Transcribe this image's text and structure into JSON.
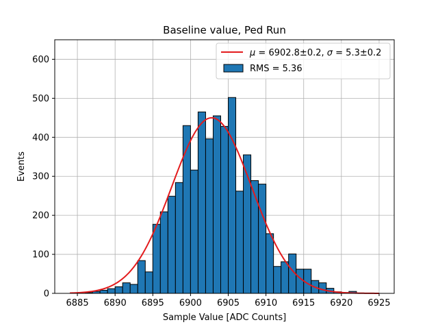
{
  "chart_data": {
    "type": "bar",
    "title": "Baseline value, Ped Run",
    "xlabel": "Sample Value [ADC Counts]",
    "ylabel": "Events",
    "xlim": [
      6882,
      6927
    ],
    "ylim": [
      0,
      650
    ],
    "xticks": [
      6885,
      6890,
      6895,
      6900,
      6905,
      6910,
      6915,
      6920,
      6925
    ],
    "yticks": [
      0,
      100,
      200,
      300,
      400,
      500,
      600
    ],
    "grid": true,
    "legend_position": "top-right",
    "bin_width": 1,
    "bins": [
      {
        "left": 6886,
        "count": 2
      },
      {
        "left": 6887,
        "count": 5
      },
      {
        "left": 6888,
        "count": 8
      },
      {
        "left": 6889,
        "count": 12
      },
      {
        "left": 6890,
        "count": 17
      },
      {
        "left": 6891,
        "count": 27
      },
      {
        "left": 6892,
        "count": 23
      },
      {
        "left": 6893,
        "count": 84
      },
      {
        "left": 6894,
        "count": 55
      },
      {
        "left": 6895,
        "count": 177
      },
      {
        "left": 6896,
        "count": 209
      },
      {
        "left": 6897,
        "count": 249
      },
      {
        "left": 6898,
        "count": 284
      },
      {
        "left": 6899,
        "count": 430
      },
      {
        "left": 6900,
        "count": 316
      },
      {
        "left": 6901,
        "count": 465
      },
      {
        "left": 6902,
        "count": 396
      },
      {
        "left": 6903,
        "count": 455
      },
      {
        "left": 6904,
        "count": 428
      },
      {
        "left": 6905,
        "count": 502
      },
      {
        "left": 6906,
        "count": 262
      },
      {
        "left": 6907,
        "count": 355
      },
      {
        "left": 6908,
        "count": 289
      },
      {
        "left": 6909,
        "count": 280
      },
      {
        "left": 6910,
        "count": 153
      },
      {
        "left": 6911,
        "count": 69
      },
      {
        "left": 6912,
        "count": 81
      },
      {
        "left": 6913,
        "count": 101
      },
      {
        "left": 6914,
        "count": 62
      },
      {
        "left": 6915,
        "count": 62
      },
      {
        "left": 6916,
        "count": 33
      },
      {
        "left": 6917,
        "count": 27
      },
      {
        "left": 6918,
        "count": 13
      },
      {
        "left": 6919,
        "count": 4
      },
      {
        "left": 6920,
        "count": 2
      },
      {
        "left": 6921,
        "count": 5
      },
      {
        "left": 6922,
        "count": 1
      }
    ],
    "fit": {
      "mu": 6902.8,
      "sigma": 5.3,
      "amplitude": 450,
      "x_range": [
        6884,
        6925
      ]
    },
    "series": [
      {
        "label": "$\\mu = 6902.8{\\pm}0.2$, $\\sigma = 5.3{\\pm}0.2$",
        "type": "line",
        "color": "#e31a1c"
      },
      {
        "label": "RMS = 5.36",
        "type": "bar",
        "color": "#1f77b4"
      }
    ]
  },
  "legend": {
    "fit_mu_symbol": "μ",
    "fit_mu_value": " = 6902.8±0.2, ",
    "fit_sigma_symbol": "σ",
    "fit_sigma_value": " = 5.3±0.2",
    "rms_label": "RMS = 5.36"
  },
  "colors": {
    "bar_fill": "#1f77b4",
    "bar_edge": "#000000",
    "fit_line": "#e31a1c",
    "grid": "#b0b0b0"
  }
}
